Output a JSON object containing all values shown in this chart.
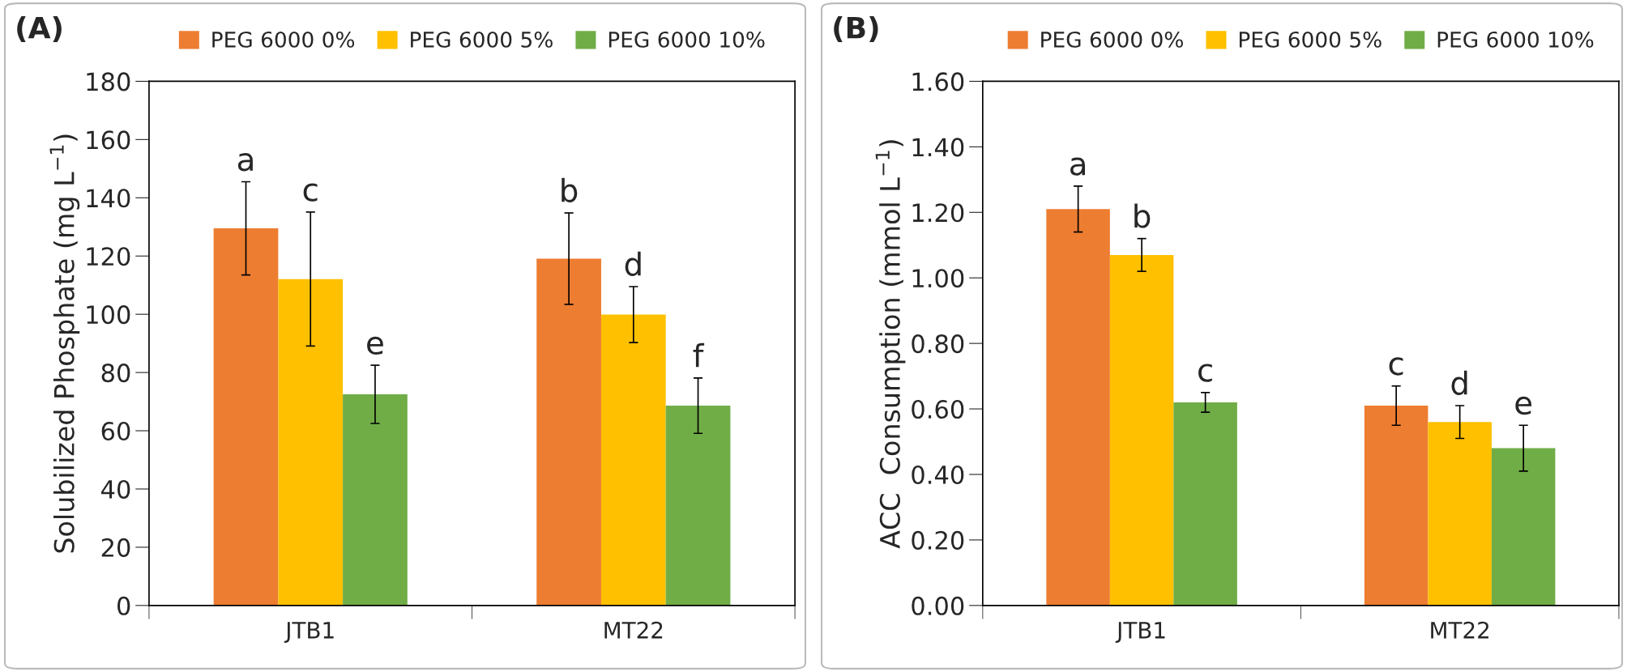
{
  "chart_data": [
    {
      "type": "bar",
      "title": "(A)",
      "ylabel": "Solubilized Phosphate (mg L$^{−1}$)",
      "categories": [
        "JTB1",
        "MT22"
      ],
      "ylim": [
        0,
        180
      ],
      "yticks": [
        0,
        20,
        40,
        60,
        80,
        100,
        120,
        140,
        160,
        180
      ],
      "grid": false,
      "legend": "top",
      "series": [
        {
          "name": "PEG 6000 0%",
          "color": "#ed7d31",
          "values": [
            129.5,
            119.1
          ],
          "errors": [
            16,
            15.7
          ],
          "value_labels": [
            "a",
            "b"
          ]
        },
        {
          "name": "PEG 6000 5%",
          "color": "#ffc000",
          "values": [
            112.1,
            99.9
          ],
          "errors": [
            23,
            9.6
          ],
          "value_labels": [
            "c",
            "d"
          ]
        },
        {
          "name": "PEG 6000 10%",
          "color": "#70ad47",
          "values": [
            72.5,
            68.6
          ],
          "errors": [
            10,
            9.5
          ],
          "value_labels": [
            "e",
            "f"
          ]
        }
      ]
    },
    {
      "type": "bar",
      "title": "(B)",
      "ylabel": "ACC  Consumption (mmol L$^{−1}$)",
      "categories": [
        "JTB1",
        "MT22"
      ],
      "ylim": [
        0,
        1.6
      ],
      "yticks": [
        {
          "value": 0,
          "label": "0.00"
        },
        {
          "value": 0.2,
          "label": "0.20"
        },
        {
          "value": 0.4,
          "label": "0.40"
        },
        {
          "value": 0.6,
          "label": "0.60"
        },
        {
          "value": 0.8,
          "label": "0.80"
        },
        {
          "value": 1.0,
          "label": "1.00"
        },
        {
          "value": 1.2,
          "label": "1.20"
        },
        {
          "value": 1.4,
          "label": "1.40"
        },
        {
          "value": 1.6,
          "label": "1.60"
        }
      ],
      "grid": false,
      "legend": "top",
      "series": [
        {
          "name": "PEG 6000 0%",
          "color": "#ed7d31",
          "values": [
            1.21,
            0.61
          ],
          "errors": [
            0.07,
            0.06
          ],
          "value_labels": [
            "a",
            "c"
          ]
        },
        {
          "name": "PEG 6000 5%",
          "color": "#ffc000",
          "values": [
            1.07,
            0.56
          ],
          "errors": [
            0.05,
            0.05
          ],
          "value_labels": [
            "b",
            "d"
          ]
        },
        {
          "name": "PEG 6000 10%",
          "color": "#70ad47",
          "values": [
            0.62,
            0.48
          ],
          "errors": [
            0.03,
            0.07
          ],
          "value_labels": [
            "c",
            "e"
          ]
        }
      ]
    }
  ]
}
